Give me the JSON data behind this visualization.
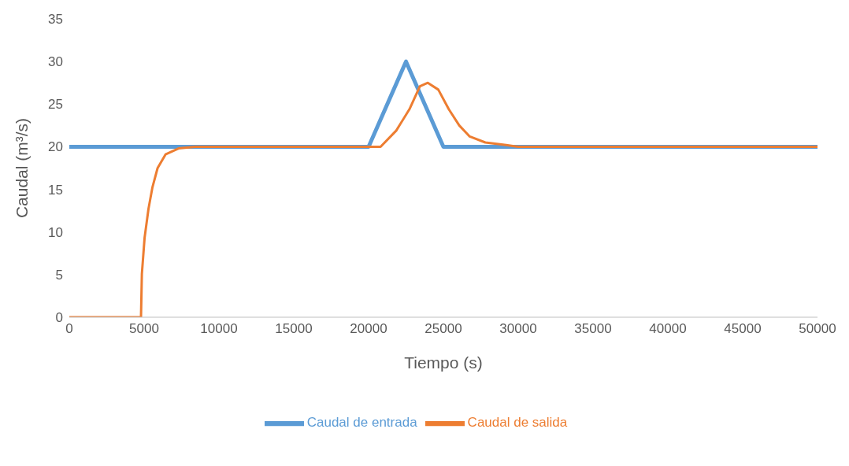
{
  "chart_data": {
    "type": "line",
    "xlabel": "Tiempo (s)",
    "ylabel": "Caudal (m³/s)",
    "xlim": [
      0,
      50000
    ],
    "xticks": [
      0,
      5000,
      10000,
      15000,
      20000,
      25000,
      30000,
      35000,
      40000,
      45000,
      50000
    ],
    "ylim": [
      0,
      35
    ],
    "yticks": [
      0,
      5,
      10,
      15,
      20,
      25,
      30,
      35
    ],
    "grid": false,
    "legend": "bottom",
    "marker": "none",
    "line_style": "solid",
    "series": [
      {
        "name": "Caudal de entrada",
        "color": "#5b9bd5",
        "x": [
          0,
          20000,
          22500,
          25000,
          50000
        ],
        "values": [
          20,
          20,
          30,
          20,
          20
        ]
      },
      {
        "name": "Caudal de salida",
        "color": "#ed7d31",
        "x": [
          0,
          4790,
          4850,
          5030,
          5290,
          5550,
          5900,
          6430,
          7300,
          8400,
          20800,
          21850,
          22730,
          23430,
          23960,
          24660,
          25360,
          26060,
          26760,
          27800,
          29200,
          30000,
          50000
        ],
        "values": [
          0,
          0,
          5.1,
          9.3,
          12.7,
          15.2,
          17.5,
          19.1,
          19.8,
          20,
          20,
          21.9,
          24.4,
          27.1,
          27.5,
          26.7,
          24.4,
          22.5,
          21.2,
          20.5,
          20.2,
          20,
          20
        ]
      }
    ]
  }
}
